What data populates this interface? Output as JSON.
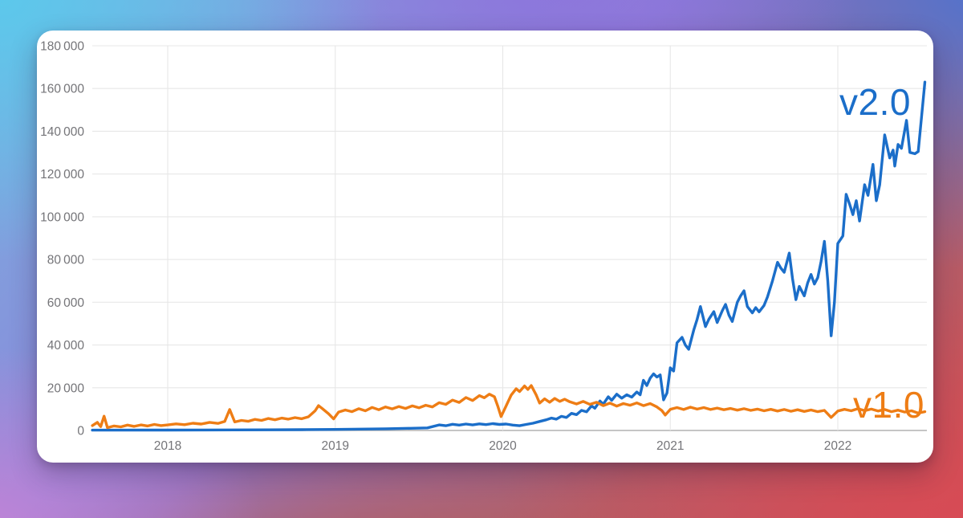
{
  "background": {
    "gradient_colors": {
      "top_left_cyan": "#5bc9ec",
      "top_center_purple": "#8d74dc",
      "top_right_blue": "#4d74d0",
      "bottom_left_pink_purple": "#c583d6",
      "bottom_right_red": "#d94a56"
    }
  },
  "card": {
    "background": "#ffffff"
  },
  "chart_data": {
    "type": "line",
    "title": "",
    "xlabel": "",
    "ylabel": "",
    "grid": true,
    "legend_position": "inline-labels-right",
    "x_range": [
      2017.55,
      2022.53
    ],
    "ylim": [
      0,
      180000
    ],
    "x_ticks": [
      2018,
      2019,
      2020,
      2021,
      2022
    ],
    "x_tick_labels": [
      "2018",
      "2019",
      "2020",
      "2021",
      "2022"
    ],
    "y_ticks": [
      0,
      20000,
      40000,
      60000,
      80000,
      100000,
      120000,
      140000,
      160000,
      180000
    ],
    "y_tick_labels": [
      "0",
      "20 000",
      "40 000",
      "60 000",
      "80 000",
      "100 000",
      "120 000",
      "140 000",
      "160 000",
      "180 000"
    ],
    "axis_color": "#b2b2b2",
    "gridline_color": "#e7e7e7",
    "tick_label_color": "#747478",
    "series": [
      {
        "name": "v2.0",
        "color": "#1b6ec9",
        "points": [
          [
            2017.55,
            150
          ],
          [
            2017.7,
            150
          ],
          [
            2017.85,
            180
          ],
          [
            2018.0,
            200
          ],
          [
            2018.2,
            220
          ],
          [
            2018.4,
            250
          ],
          [
            2018.6,
            300
          ],
          [
            2018.8,
            380
          ],
          [
            2019.0,
            500
          ],
          [
            2019.15,
            650
          ],
          [
            2019.3,
            800
          ],
          [
            2019.45,
            1000
          ],
          [
            2019.55,
            1200
          ],
          [
            2019.62,
            2600
          ],
          [
            2019.66,
            2200
          ],
          [
            2019.7,
            2900
          ],
          [
            2019.74,
            2500
          ],
          [
            2019.78,
            3000
          ],
          [
            2019.82,
            2600
          ],
          [
            2019.86,
            3100
          ],
          [
            2019.9,
            2750
          ],
          [
            2019.94,
            3200
          ],
          [
            2019.98,
            2800
          ],
          [
            2020.02,
            3000
          ],
          [
            2020.06,
            2500
          ],
          [
            2020.1,
            2200
          ],
          [
            2020.14,
            2800
          ],
          [
            2020.18,
            3400
          ],
          [
            2020.22,
            4200
          ],
          [
            2020.26,
            5000
          ],
          [
            2020.29,
            5800
          ],
          [
            2020.32,
            5300
          ],
          [
            2020.35,
            6600
          ],
          [
            2020.38,
            6100
          ],
          [
            2020.41,
            8000
          ],
          [
            2020.44,
            7400
          ],
          [
            2020.47,
            9400
          ],
          [
            2020.5,
            8700
          ],
          [
            2020.53,
            11500
          ],
          [
            2020.55,
            10400
          ],
          [
            2020.58,
            13800
          ],
          [
            2020.6,
            12300
          ],
          [
            2020.63,
            15800
          ],
          [
            2020.65,
            14100
          ],
          [
            2020.68,
            17000
          ],
          [
            2020.71,
            15100
          ],
          [
            2020.74,
            16700
          ],
          [
            2020.77,
            15600
          ],
          [
            2020.8,
            18000
          ],
          [
            2020.82,
            16700
          ],
          [
            2020.84,
            23500
          ],
          [
            2020.86,
            21000
          ],
          [
            2020.88,
            24500
          ],
          [
            2020.9,
            26500
          ],
          [
            2020.92,
            25000
          ],
          [
            2020.94,
            26000
          ],
          [
            2020.96,
            14300
          ],
          [
            2020.98,
            17500
          ],
          [
            2021.0,
            29300
          ],
          [
            2021.02,
            27800
          ],
          [
            2021.04,
            41000
          ],
          [
            2021.07,
            43600
          ],
          [
            2021.09,
            40000
          ],
          [
            2021.11,
            38000
          ],
          [
            2021.14,
            47000
          ],
          [
            2021.16,
            52000
          ],
          [
            2021.18,
            58000
          ],
          [
            2021.21,
            48600
          ],
          [
            2021.23,
            52000
          ],
          [
            2021.26,
            55600
          ],
          [
            2021.28,
            50500
          ],
          [
            2021.31,
            56000
          ],
          [
            2021.33,
            59000
          ],
          [
            2021.35,
            54000
          ],
          [
            2021.37,
            51000
          ],
          [
            2021.4,
            60000
          ],
          [
            2021.42,
            63000
          ],
          [
            2021.44,
            65400
          ],
          [
            2021.46,
            58000
          ],
          [
            2021.49,
            55000
          ],
          [
            2021.51,
            57500
          ],
          [
            2021.53,
            55500
          ],
          [
            2021.56,
            58500
          ],
          [
            2021.58,
            62400
          ],
          [
            2021.61,
            70000
          ],
          [
            2021.64,
            78700
          ],
          [
            2021.66,
            76000
          ],
          [
            2021.68,
            74000
          ],
          [
            2021.71,
            83000
          ],
          [
            2021.73,
            71000
          ],
          [
            2021.75,
            61200
          ],
          [
            2021.77,
            67400
          ],
          [
            2021.8,
            63000
          ],
          [
            2021.82,
            69000
          ],
          [
            2021.84,
            73000
          ],
          [
            2021.86,
            68500
          ],
          [
            2021.88,
            71500
          ],
          [
            2021.9,
            79000
          ],
          [
            2021.92,
            88500
          ],
          [
            2021.94,
            70000
          ],
          [
            2021.96,
            44300
          ],
          [
            2021.98,
            60000
          ],
          [
            2022.0,
            87500
          ],
          [
            2022.03,
            91000
          ],
          [
            2022.05,
            110500
          ],
          [
            2022.07,
            106000
          ],
          [
            2022.09,
            101000
          ],
          [
            2022.11,
            107500
          ],
          [
            2022.13,
            98000
          ],
          [
            2022.16,
            115000
          ],
          [
            2022.18,
            110000
          ],
          [
            2022.21,
            124500
          ],
          [
            2022.23,
            107500
          ],
          [
            2022.25,
            115000
          ],
          [
            2022.28,
            138300
          ],
          [
            2022.31,
            127500
          ],
          [
            2022.33,
            131200
          ],
          [
            2022.34,
            123700
          ],
          [
            2022.36,
            133800
          ],
          [
            2022.38,
            132000
          ],
          [
            2022.41,
            145100
          ],
          [
            2022.43,
            130100
          ],
          [
            2022.46,
            129500
          ],
          [
            2022.48,
            130500
          ],
          [
            2022.52,
            163000
          ]
        ]
      },
      {
        "name": "v1.0",
        "color": "#ee7d15",
        "points": [
          [
            2017.55,
            2300
          ],
          [
            2017.58,
            3800
          ],
          [
            2017.6,
            1800
          ],
          [
            2017.62,
            6700
          ],
          [
            2017.64,
            1300
          ],
          [
            2017.68,
            2100
          ],
          [
            2017.72,
            1700
          ],
          [
            2017.76,
            2500
          ],
          [
            2017.8,
            1900
          ],
          [
            2017.84,
            2600
          ],
          [
            2017.88,
            2100
          ],
          [
            2017.92,
            2800
          ],
          [
            2017.96,
            2300
          ],
          [
            2018.0,
            2600
          ],
          [
            2018.05,
            3100
          ],
          [
            2018.1,
            2700
          ],
          [
            2018.15,
            3400
          ],
          [
            2018.2,
            3000
          ],
          [
            2018.25,
            3800
          ],
          [
            2018.3,
            3300
          ],
          [
            2018.34,
            4200
          ],
          [
            2018.37,
            9800
          ],
          [
            2018.4,
            4000
          ],
          [
            2018.44,
            4700
          ],
          [
            2018.48,
            4300
          ],
          [
            2018.52,
            5200
          ],
          [
            2018.56,
            4700
          ],
          [
            2018.6,
            5600
          ],
          [
            2018.64,
            5000
          ],
          [
            2018.68,
            5800
          ],
          [
            2018.72,
            5300
          ],
          [
            2018.76,
            6000
          ],
          [
            2018.8,
            5500
          ],
          [
            2018.84,
            6400
          ],
          [
            2018.88,
            9200
          ],
          [
            2018.9,
            11600
          ],
          [
            2018.92,
            10400
          ],
          [
            2018.96,
            7800
          ],
          [
            2018.99,
            5400
          ],
          [
            2019.02,
            8600
          ],
          [
            2019.06,
            9600
          ],
          [
            2019.1,
            8800
          ],
          [
            2019.14,
            10200
          ],
          [
            2019.18,
            9200
          ],
          [
            2019.22,
            10800
          ],
          [
            2019.26,
            9700
          ],
          [
            2019.3,
            11000
          ],
          [
            2019.34,
            10100
          ],
          [
            2019.38,
            11200
          ],
          [
            2019.42,
            10300
          ],
          [
            2019.46,
            11500
          ],
          [
            2019.5,
            10600
          ],
          [
            2019.54,
            11800
          ],
          [
            2019.58,
            11000
          ],
          [
            2019.62,
            13000
          ],
          [
            2019.66,
            12200
          ],
          [
            2019.7,
            14200
          ],
          [
            2019.74,
            13100
          ],
          [
            2019.78,
            15400
          ],
          [
            2019.82,
            14000
          ],
          [
            2019.86,
            16300
          ],
          [
            2019.89,
            15300
          ],
          [
            2019.92,
            17000
          ],
          [
            2019.95,
            15800
          ],
          [
            2019.97,
            11500
          ],
          [
            2019.99,
            6500
          ],
          [
            2020.02,
            11500
          ],
          [
            2020.05,
            16500
          ],
          [
            2020.08,
            19500
          ],
          [
            2020.1,
            18200
          ],
          [
            2020.13,
            20800
          ],
          [
            2020.15,
            19200
          ],
          [
            2020.17,
            21000
          ],
          [
            2020.2,
            16500
          ],
          [
            2020.22,
            12800
          ],
          [
            2020.25,
            14800
          ],
          [
            2020.28,
            13200
          ],
          [
            2020.31,
            15000
          ],
          [
            2020.34,
            13600
          ],
          [
            2020.37,
            14600
          ],
          [
            2020.4,
            13400
          ],
          [
            2020.44,
            12400
          ],
          [
            2020.48,
            13600
          ],
          [
            2020.52,
            12200
          ],
          [
            2020.56,
            13200
          ],
          [
            2020.6,
            11600
          ],
          [
            2020.64,
            12800
          ],
          [
            2020.68,
            11400
          ],
          [
            2020.72,
            12600
          ],
          [
            2020.76,
            11800
          ],
          [
            2020.8,
            12900
          ],
          [
            2020.84,
            11600
          ],
          [
            2020.88,
            12600
          ],
          [
            2020.92,
            11000
          ],
          [
            2020.95,
            9300
          ],
          [
            2020.97,
            7200
          ],
          [
            2021.0,
            9900
          ],
          [
            2021.04,
            10700
          ],
          [
            2021.08,
            9800
          ],
          [
            2021.12,
            10900
          ],
          [
            2021.16,
            10000
          ],
          [
            2021.2,
            10700
          ],
          [
            2021.24,
            9800
          ],
          [
            2021.28,
            10500
          ],
          [
            2021.32,
            9700
          ],
          [
            2021.36,
            10300
          ],
          [
            2021.4,
            9500
          ],
          [
            2021.44,
            10200
          ],
          [
            2021.48,
            9400
          ],
          [
            2021.52,
            10000
          ],
          [
            2021.56,
            9200
          ],
          [
            2021.6,
            9900
          ],
          [
            2021.64,
            9100
          ],
          [
            2021.68,
            9800
          ],
          [
            2021.72,
            9000
          ],
          [
            2021.76,
            9700
          ],
          [
            2021.8,
            8900
          ],
          [
            2021.84,
            9600
          ],
          [
            2021.88,
            8800
          ],
          [
            2021.92,
            9400
          ],
          [
            2021.96,
            6100
          ],
          [
            2022.0,
            9100
          ],
          [
            2022.04,
            9900
          ],
          [
            2022.08,
            9200
          ],
          [
            2022.12,
            10200
          ],
          [
            2022.16,
            9300
          ],
          [
            2022.2,
            10000
          ],
          [
            2022.24,
            9100
          ],
          [
            2022.28,
            9800
          ],
          [
            2022.32,
            8800
          ],
          [
            2022.36,
            9500
          ],
          [
            2022.4,
            8600
          ],
          [
            2022.44,
            9200
          ],
          [
            2022.48,
            8100
          ],
          [
            2022.52,
            8800
          ]
        ]
      }
    ]
  }
}
